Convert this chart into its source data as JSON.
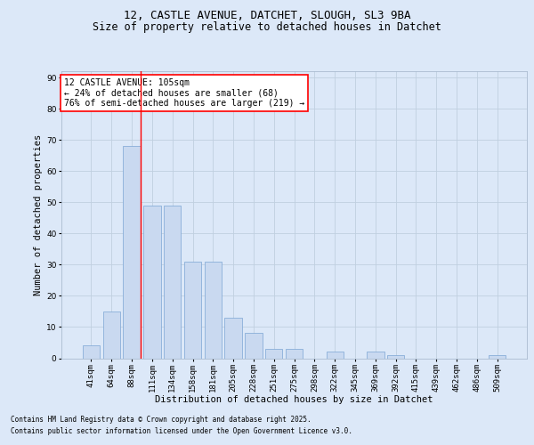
{
  "title1": "12, CASTLE AVENUE, DATCHET, SLOUGH, SL3 9BA",
  "title2": "Size of property relative to detached houses in Datchet",
  "xlabel": "Distribution of detached houses by size in Datchet",
  "ylabel": "Number of detached properties",
  "categories": [
    "41sqm",
    "64sqm",
    "88sqm",
    "111sqm",
    "134sqm",
    "158sqm",
    "181sqm",
    "205sqm",
    "228sqm",
    "251sqm",
    "275sqm",
    "298sqm",
    "322sqm",
    "345sqm",
    "369sqm",
    "392sqm",
    "415sqm",
    "439sqm",
    "462sqm",
    "486sqm",
    "509sqm"
  ],
  "values": [
    4,
    15,
    68,
    49,
    49,
    31,
    31,
    13,
    8,
    3,
    3,
    0,
    2,
    0,
    2,
    1,
    0,
    0,
    0,
    0,
    1
  ],
  "bar_color": "#c9d9f0",
  "bar_edge_color": "#7ba4d4",
  "grid_color": "#c0cfe0",
  "background_color": "#dce8f8",
  "annotation_text": "12 CASTLE AVENUE: 105sqm\n← 24% of detached houses are smaller (68)\n76% of semi-detached houses are larger (219) →",
  "vline_color": "red",
  "vline_bin": 2,
  "ylim": [
    0,
    92
  ],
  "yticks": [
    0,
    10,
    20,
    30,
    40,
    50,
    60,
    70,
    80,
    90
  ],
  "footer1": "Contains HM Land Registry data © Crown copyright and database right 2025.",
  "footer2": "Contains public sector information licensed under the Open Government Licence v3.0.",
  "title_fontsize": 9,
  "subtitle_fontsize": 8.5,
  "tick_fontsize": 6.5,
  "label_fontsize": 7.5,
  "ann_fontsize": 7,
  "footer_fontsize": 5.5
}
